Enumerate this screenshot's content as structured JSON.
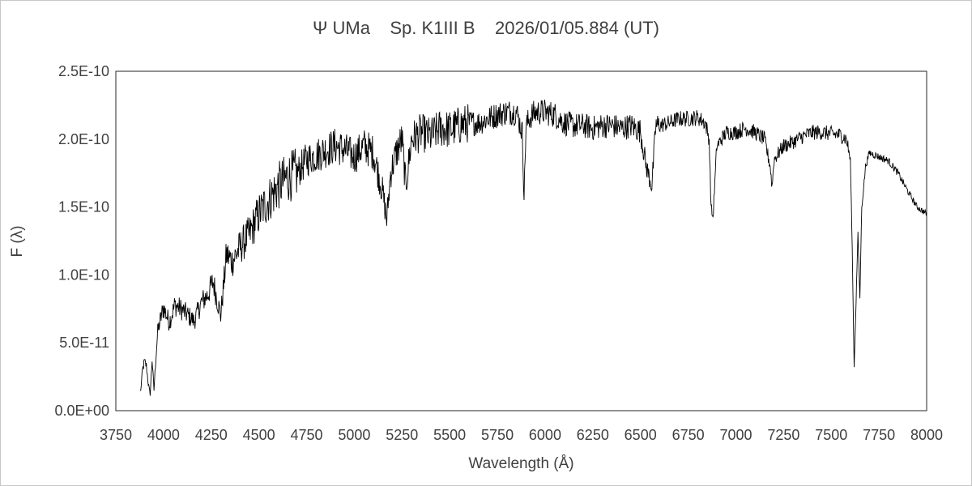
{
  "chart_data": {
    "type": "line",
    "title": "Ψ UMa    Sp. K1III B    2026/01/05.884 (UT)",
    "xlabel": "Wavelength (Å)",
    "ylabel": "F (λ)",
    "xlim": [
      3750,
      8000
    ],
    "ylim": [
      0,
      2.5e-10
    ],
    "x_ticks": [
      3750,
      4000,
      4250,
      4500,
      4750,
      5000,
      5250,
      5500,
      5750,
      6000,
      6250,
      6500,
      6750,
      7000,
      7250,
      7500,
      7750,
      8000
    ],
    "x_tick_labels": [
      "3750",
      "4000",
      "4250",
      "4500",
      "4750",
      "5000",
      "5250",
      "5500",
      "5750",
      "6000",
      "6250",
      "6500",
      "6750",
      "7000",
      "7250",
      "7500",
      "7750",
      "8000"
    ],
    "y_ticks": [
      0,
      5e-11,
      1e-10,
      1.5e-10,
      2e-10,
      2.5e-10
    ],
    "y_tick_labels": [
      "0.0E+00",
      "5.0E-11",
      "1.0E-10",
      "1.5E-10",
      "2.0E-10",
      "2.5E-10"
    ],
    "grid": false,
    "legend": "none",
    "line_color": "#000000",
    "series": [
      {
        "x": [
          3880,
          3890,
          3900,
          3910,
          3920,
          3930,
          3940,
          3950,
          3960,
          3970,
          3980,
          4000,
          4030,
          4060,
          4100,
          4130,
          4160,
          4200,
          4230,
          4260,
          4300,
          4330,
          4360,
          4400,
          4450,
          4500,
          4550,
          4600,
          4650,
          4700,
          4750,
          4800,
          4850,
          4900,
          4950,
          5000,
          5050,
          5100,
          5150,
          5170,
          5190,
          5220,
          5250,
          5270,
          5300,
          5350,
          5400,
          5450,
          5500,
          5550,
          5600,
          5650,
          5700,
          5750,
          5800,
          5850,
          5880,
          5890,
          5900,
          5930,
          5960,
          6000,
          6050,
          6100,
          6150,
          6200,
          6250,
          6300,
          6350,
          6400,
          6450,
          6500,
          6530,
          6560,
          6580,
          6600,
          6650,
          6700,
          6750,
          6800,
          6840,
          6860,
          6870,
          6880,
          6900,
          6950,
          7000,
          7050,
          7100,
          7150,
          7180,
          7190,
          7200,
          7250,
          7300,
          7350,
          7400,
          7450,
          7500,
          7550,
          7580,
          7600,
          7610,
          7620,
          7630,
          7640,
          7650,
          7660,
          7680,
          7700,
          7750,
          7800,
          7850,
          7900,
          7950,
          8000
        ],
        "y": [
          1.4e-11,
          3e-11,
          3.6e-11,
          3.3e-11,
          2e-11,
          1.2e-11,
          3.8e-11,
          1.5e-11,
          4e-11,
          5.8e-11,
          6.5e-11,
          7.6e-11,
          6.5e-11,
          7.8e-11,
          7.4e-11,
          7e-11,
          6.6e-11,
          8e-11,
          8.5e-11,
          9.5e-11,
          7e-11,
          1.15e-10,
          1.1e-10,
          1.2e-10,
          1.3e-10,
          1.45e-10,
          1.55e-10,
          1.65e-10,
          1.72e-10,
          1.75e-10,
          1.85e-10,
          1.88e-10,
          1.92e-10,
          1.95e-10,
          1.92e-10,
          1.87e-10,
          1.95e-10,
          1.9e-10,
          1.6e-10,
          1.4e-10,
          1.75e-10,
          1.9e-10,
          2e-10,
          1.65e-10,
          2e-10,
          2.05e-10,
          2.02e-10,
          2.08e-10,
          2.07e-10,
          2.1e-10,
          2.12e-10,
          2.12e-10,
          2.15e-10,
          2.18e-10,
          2.2e-10,
          2.2e-10,
          2.05e-10,
          1.58e-10,
          2.1e-10,
          2.18e-10,
          2.2e-10,
          2.2e-10,
          2.18e-10,
          2.12e-10,
          2.1e-10,
          2.1e-10,
          2.08e-10,
          2.1e-10,
          2.1e-10,
          2.08e-10,
          2.1e-10,
          2.06e-10,
          1.8e-10,
          1.65e-10,
          2.1e-10,
          2.1e-10,
          2.12e-10,
          2.15e-10,
          2.15e-10,
          2.16e-10,
          2.12e-10,
          2e-10,
          1.5e-10,
          1.42e-10,
          1.95e-10,
          2.05e-10,
          2.05e-10,
          2.08e-10,
          2.05e-10,
          2e-10,
          1.8e-10,
          1.65e-10,
          1.85e-10,
          1.95e-10,
          1.98e-10,
          2.02e-10,
          2.05e-10,
          2.05e-10,
          2.04e-10,
          2.03e-10,
          2e-10,
          1.85e-10,
          1.2e-10,
          3.2e-11,
          8e-11,
          1.3e-10,
          8.3e-11,
          1.5e-10,
          1.8e-10,
          1.9e-10,
          1.87e-10,
          1.84e-10,
          1.75e-10,
          1.62e-10,
          1.5e-10,
          1.45e-10
        ]
      }
    ]
  }
}
